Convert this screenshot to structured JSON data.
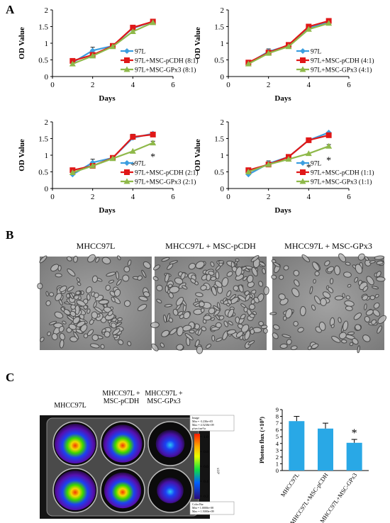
{
  "panels": {
    "a": "A",
    "b": "B",
    "c": "C"
  },
  "line_common": {
    "ylabel": "OD Value",
    "xlabel": "Days",
    "x_ticks": [
      0,
      2,
      4,
      6
    ],
    "y_ticks": [
      0,
      0.5,
      1,
      1.5,
      2
    ],
    "y_tick_labels": [
      "0",
      "0.5",
      "1",
      "1.5",
      "2"
    ],
    "colors": {
      "s97L": "#3b9ee0",
      "pcdh": "#e01818",
      "gpx3": "#8fb94a"
    }
  },
  "chart_data": [
    {
      "type": "line",
      "x": [
        1,
        2,
        3,
        4,
        5
      ],
      "xlim": [
        0,
        6
      ],
      "ylim": [
        0,
        2
      ],
      "xlabel": "Days",
      "ylabel": "OD Value",
      "series": [
        {
          "name": "97L",
          "values": [
            0.42,
            0.78,
            0.92,
            1.45,
            1.65
          ]
        },
        {
          "name": "97L+MSC-pCDH (8:1)",
          "values": [
            0.47,
            0.65,
            0.92,
            1.47,
            1.65
          ]
        },
        {
          "name": "97L+MSC-GPx3 (8:1)",
          "values": [
            0.38,
            0.62,
            0.9,
            1.35,
            1.62
          ]
        }
      ],
      "error_marks": [
        [
          2,
          0.78,
          0.1
        ],
        [
          4,
          1.45,
          0.05
        ]
      ],
      "asterisks": []
    },
    {
      "type": "line",
      "x": [
        1,
        2,
        3,
        4,
        5
      ],
      "xlim": [
        0,
        6
      ],
      "ylim": [
        0,
        2
      ],
      "xlabel": "Days",
      "ylabel": "OD Value",
      "series": [
        {
          "name": "97L",
          "values": [
            0.4,
            0.75,
            0.93,
            1.45,
            1.65
          ]
        },
        {
          "name": "97L+MSC-pCDH (4:1)",
          "values": [
            0.42,
            0.72,
            0.95,
            1.5,
            1.67
          ]
        },
        {
          "name": "97L+MSC-GPx3 (4:1)",
          "values": [
            0.38,
            0.7,
            0.9,
            1.42,
            1.6
          ]
        }
      ],
      "error_marks": [
        [
          2,
          0.75,
          0.08
        ],
        [
          4,
          1.45,
          0.05
        ]
      ],
      "asterisks": []
    },
    {
      "type": "line",
      "x": [
        1,
        2,
        3,
        4,
        5
      ],
      "xlim": [
        0,
        6
      ],
      "ylim": [
        0,
        2
      ],
      "xlabel": "Days",
      "ylabel": "OD Value",
      "series": [
        {
          "name": "97L",
          "values": [
            0.42,
            0.78,
            0.92,
            1.52,
            1.65
          ]
        },
        {
          "name": "97L+MSC-pCDH (2:1)",
          "values": [
            0.55,
            0.68,
            0.92,
            1.55,
            1.62
          ]
        },
        {
          "name": "97L+MSC-GPx3 (2:1)",
          "values": [
            0.48,
            0.68,
            0.9,
            1.12,
            1.37
          ]
        }
      ],
      "error_marks": [
        [
          2,
          0.78,
          0.1
        ],
        [
          4,
          1.55,
          0.08
        ],
        [
          5,
          1.37,
          0.05
        ]
      ],
      "asterisks": [
        [
          4,
          "*"
        ],
        [
          5,
          "*"
        ]
      ]
    },
    {
      "type": "line",
      "x": [
        1,
        2,
        3,
        4,
        5
      ],
      "xlim": [
        0,
        6
      ],
      "ylim": [
        0,
        2
      ],
      "xlabel": "Days",
      "ylabel": "OD Value",
      "series": [
        {
          "name": "97L",
          "values": [
            0.42,
            0.75,
            0.95,
            1.45,
            1.68
          ]
        },
        {
          "name": "97L+MSC-pCDH (1:1)",
          "values": [
            0.55,
            0.72,
            0.95,
            1.45,
            1.6
          ]
        },
        {
          "name": "97L+MSC-GPx3 (1:1)",
          "values": [
            0.5,
            0.72,
            0.88,
            1.05,
            1.27
          ]
        }
      ],
      "error_marks": [
        [
          2,
          0.75,
          0.08
        ],
        [
          4,
          1.45,
          0.05
        ],
        [
          5,
          1.27,
          0.05
        ]
      ],
      "asterisks": [
        [
          4,
          "*"
        ],
        [
          5,
          "*"
        ]
      ]
    },
    {
      "type": "bar",
      "categories": [
        "MHCC97L",
        "MHCC97L+MSC-pCDH",
        "MHCC97L+MSC-GPx3"
      ],
      "values": [
        7.3,
        6.2,
        4.1
      ],
      "errors": [
        0.7,
        0.8,
        0.5
      ],
      "ylabel": "Photon flux (×10⁹)",
      "ylim": [
        0,
        9
      ],
      "y_ticks": [
        0,
        1,
        2,
        3,
        4,
        5,
        6,
        7,
        8,
        9
      ],
      "asterisk": "*",
      "color": "#29a8e6"
    }
  ],
  "micrograph_titles": [
    "MHCC97L",
    "MHCC97L + MSC-pCDH",
    "MHCC97L + MSC-GPx3"
  ],
  "plate_titles": [
    "MHCC97L",
    "MHCC97L +\nMSC-pCDH",
    "MHCC97L +\nMSC-GPx3"
  ],
  "colorbar": {
    "ticks": [
      "1.0",
      "0.8",
      "0.6",
      "0.4",
      "0.2"
    ],
    "unit": "x10⁹",
    "box_text": [
      "Image",
      "Min = -3.236e+05",
      "Max = 4.5238e+09",
      "p/sec/cm²/sr"
    ],
    "bottom_text": [
      "Color Bar",
      "Min = 1.0000e+08",
      "Max = 1.5000e+09"
    ]
  }
}
